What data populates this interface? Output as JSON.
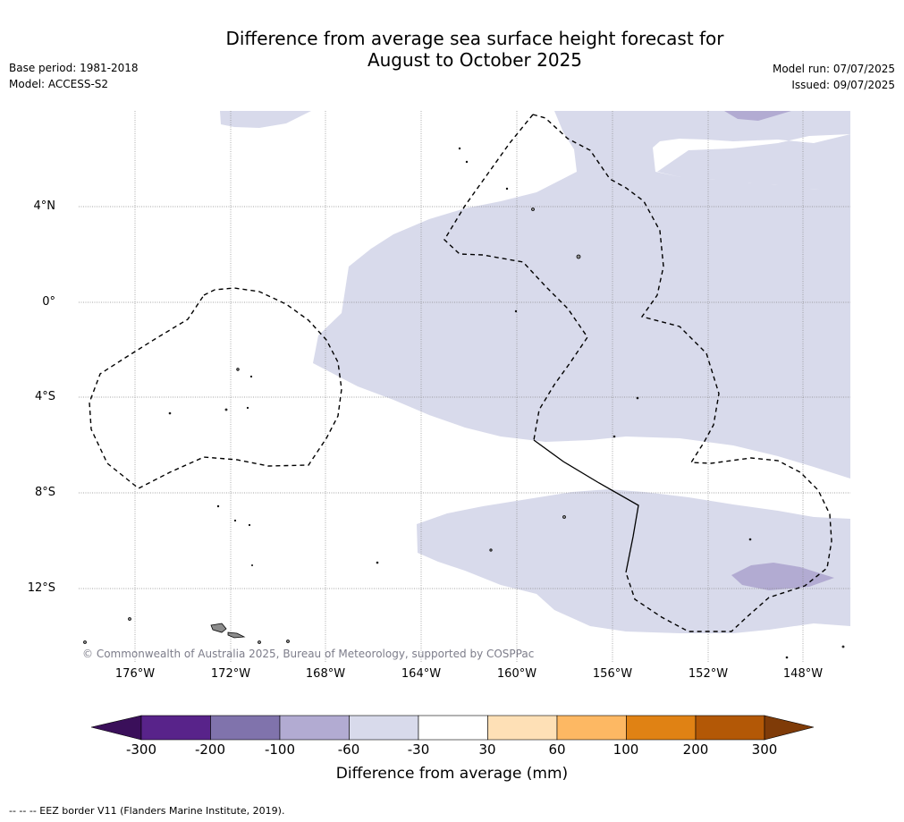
{
  "title_line1": "Difference from average sea surface height forecast for",
  "title_line2": "August to October 2025",
  "meta_left": {
    "base_period": "Base period: 1981-2018",
    "model": "Model: ACCESS-S2"
  },
  "meta_right": {
    "model_run": "Model run: 07/07/2025",
    "issued": "Issued: 09/07/2025"
  },
  "lat_labels": [
    "4°N",
    "0°",
    "4°S",
    "8°S",
    "12°S"
  ],
  "lon_labels": [
    "176°W",
    "172°W",
    "168°W",
    "164°W",
    "160°W",
    "156°W",
    "152°W",
    "148°W"
  ],
  "copyright": "© Commonwealth of Australia 2025, Bureau of Meteorology, supported by COSPPac",
  "colorbar": {
    "ticks": [
      "-300",
      "-200",
      "-100",
      "-60",
      "-30",
      "30",
      "60",
      "100",
      "200",
      "300"
    ],
    "colors": [
      "#3a0f5a",
      "#58238a",
      "#8073ac",
      "#b2abd2",
      "#d8daeb",
      "#ffffff",
      "#fee0b6",
      "#fdb863",
      "#e08214",
      "#b35806",
      "#7f3b08"
    ],
    "label": "Difference from average (mm)"
  },
  "map_colors": {
    "light_anomaly": "#d8daeb",
    "moderate_anomaly": "#b2abd2",
    "land": "#8c8c8c",
    "eez_border": "#000000"
  },
  "footnote": "--  --  -- EEZ border V11 (Flanders Marine Institute, 2019)."
}
